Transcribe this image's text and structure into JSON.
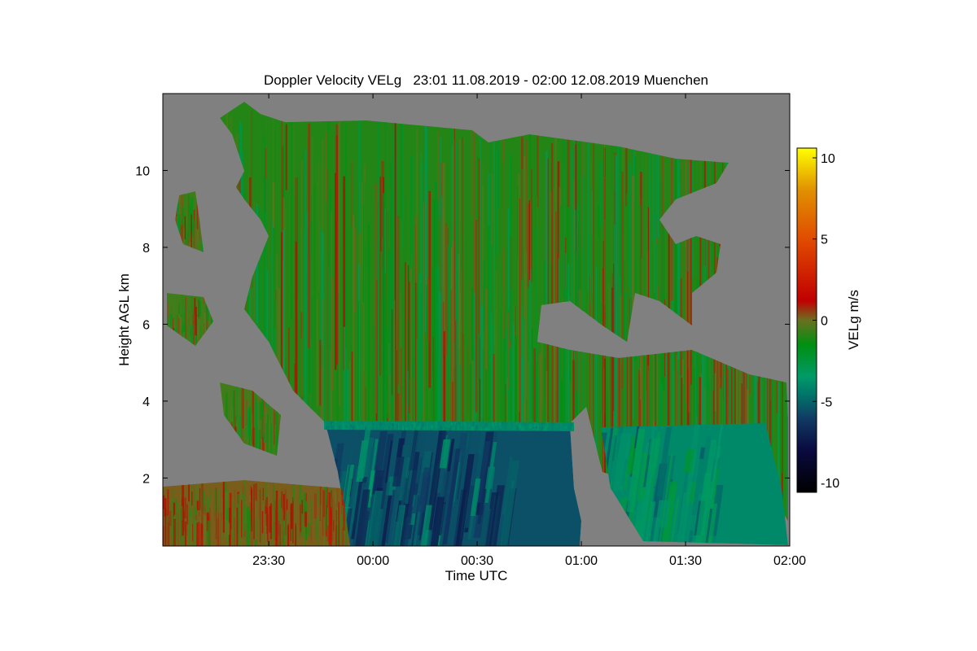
{
  "chart_data": {
    "type": "heatmap",
    "title": "Doppler Velocity VELg   23:01 11.08.2019 - 02:00 12.08.2019 Muenchen",
    "xlabel": "Time UTC",
    "ylabel": "Height AGL km",
    "x_ticks": [
      {
        "label": "23:30",
        "minutes_after_2300": 30
      },
      {
        "label": "00:00",
        "minutes_after_2300": 60
      },
      {
        "label": "00:30",
        "minutes_after_2300": 90
      },
      {
        "label": "01:00",
        "minutes_after_2300": 120
      },
      {
        "label": "01:30",
        "minutes_after_2300": 150
      },
      {
        "label": "02:00",
        "minutes_after_2300": 180
      }
    ],
    "xlim_minutes_after_2300": [
      -0.5,
      180
    ],
    "y_ticks": [
      2,
      4,
      6,
      8,
      10
    ],
    "ylim": [
      0.23,
      12.0
    ],
    "no_data_color": "#808080",
    "colorbar": {
      "label": "VELg m/s",
      "ticks": [
        10,
        5,
        0,
        -5,
        -10
      ],
      "range": [
        -10.6,
        10.6
      ],
      "stops": [
        {
          "v": -10.6,
          "c": "#000000"
        },
        {
          "v": -8,
          "c": "#0a0a40"
        },
        {
          "v": -6,
          "c": "#103c64"
        },
        {
          "v": -4.5,
          "c": "#00786a"
        },
        {
          "v": -3.5,
          "c": "#009a68"
        },
        {
          "v": -1.5,
          "c": "#009010"
        },
        {
          "v": 0,
          "c": "#6a7020"
        },
        {
          "v": 1.2,
          "c": "#c00000"
        },
        {
          "v": 5,
          "c": "#e04c00"
        },
        {
          "v": 8,
          "c": "#e09000"
        },
        {
          "v": 10.6,
          "c": "#ffff00"
        }
      ]
    },
    "regions": [
      {
        "name": "upper-ice-cloud",
        "mean_velocity": -1.0,
        "spread": 2.2
      },
      {
        "name": "rain-shaft-1",
        "mean_velocity": -5.5,
        "spread": 2.0
      },
      {
        "name": "rain-shaft-2",
        "mean_velocity": -4.0,
        "spread": 1.8
      },
      {
        "name": "melting-layer",
        "mean_velocity": -4.0,
        "spread": 0.5,
        "height_km": 3.3
      },
      {
        "name": "boundary-layer",
        "mean_velocity": 0.2,
        "spread": 1.6
      },
      {
        "name": "scattered-cloud",
        "mean_velocity": -0.6,
        "spread": 1.8
      }
    ]
  }
}
